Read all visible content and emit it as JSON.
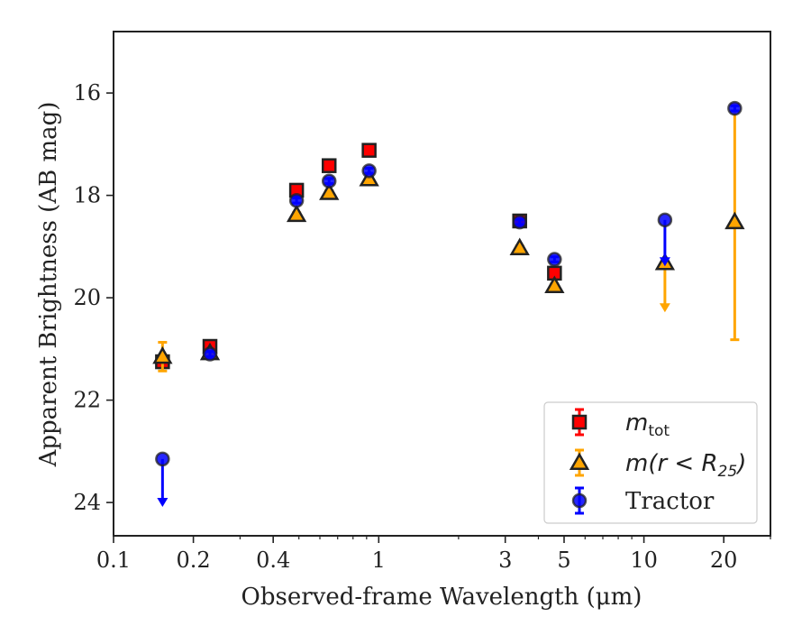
{
  "chart_data": {
    "type": "scatter",
    "title": "",
    "xlabel": "Observed-frame Wavelength (μm)",
    "ylabel": "Apparent Brightness (AB mag)",
    "xscale": "log",
    "xlim": [
      0.1,
      30
    ],
    "ylim": [
      24.65,
      14.8
    ],
    "y_inverted": true,
    "x_ticks": [
      0.1,
      0.2,
      0.4,
      1,
      3,
      5,
      10,
      20
    ],
    "x_tick_labels": [
      "0.1",
      "0.2",
      "0.4",
      "1",
      "3",
      "5",
      "10",
      "20"
    ],
    "y_ticks": [
      16,
      18,
      20,
      22,
      24
    ],
    "y_tick_labels": [
      "16",
      "18",
      "20",
      "22",
      "24"
    ],
    "grid": false,
    "legend_position": "lower-right",
    "series": [
      {
        "name": "m_tot",
        "legend_parts": {
          "base": "m",
          "sub": "tot"
        },
        "marker": "square",
        "color": "#ff0000",
        "errorbar_color": "#ff0000",
        "points": [
          {
            "x": 0.153,
            "y": 21.25,
            "err": 0.05
          },
          {
            "x": 0.231,
            "y": 20.95,
            "err": 0.05
          },
          {
            "x": 0.49,
            "y": 17.9,
            "err": 0.05
          },
          {
            "x": 0.65,
            "y": 17.42,
            "err": 0.05
          },
          {
            "x": 0.92,
            "y": 17.12,
            "err": 0.05
          },
          {
            "x": 3.4,
            "y": 18.5,
            "err": 0.05
          },
          {
            "x": 4.6,
            "y": 19.52,
            "err": 0.05
          }
        ]
      },
      {
        "name": "m(r < R25)",
        "legend_parts": {
          "base": "m(r < R",
          "sub": "25",
          "tail": ")"
        },
        "marker": "triangle",
        "color": "#ffa500",
        "errorbar_color": "#ffa500",
        "points": [
          {
            "x": 0.153,
            "y": 21.15,
            "err": 0.28
          },
          {
            "x": 0.231,
            "y": 21.08,
            "err": 0.04
          },
          {
            "x": 0.49,
            "y": 18.38,
            "err": 0.04
          },
          {
            "x": 0.65,
            "y": 17.95,
            "err": 0.04
          },
          {
            "x": 0.92,
            "y": 17.68,
            "err": 0.04
          },
          {
            "x": 3.4,
            "y": 19.03,
            "err": 0.04
          },
          {
            "x": 4.6,
            "y": 19.77,
            "err": 0.04
          },
          {
            "x": 12.0,
            "y": 19.32,
            "upper_limit": true,
            "arrow_to": 20.25
          },
          {
            "x": 22.0,
            "y": 18.52,
            "err_low": 2.3,
            "err_high": 2.3
          }
        ]
      },
      {
        "name": "Tractor",
        "marker": "circle",
        "color": "#0000ff",
        "errorbar_color": "#0000ff",
        "points": [
          {
            "x": 0.153,
            "y": 23.15,
            "upper_limit": true,
            "arrow_to": 24.05
          },
          {
            "x": 0.231,
            "y": 21.1,
            "err": 0.05
          },
          {
            "x": 0.49,
            "y": 18.1,
            "err": 0.05
          },
          {
            "x": 0.65,
            "y": 17.72,
            "err": 0.05
          },
          {
            "x": 0.92,
            "y": 17.52,
            "err": 0.05
          },
          {
            "x": 3.4,
            "y": 18.52,
            "err": 0.05
          },
          {
            "x": 4.6,
            "y": 19.25,
            "err": 0.05
          },
          {
            "x": 12.0,
            "y": 18.48,
            "upper_limit": true,
            "arrow_to": 19.35
          },
          {
            "x": 22.0,
            "y": 16.3,
            "err": 0.05
          }
        ]
      }
    ]
  }
}
